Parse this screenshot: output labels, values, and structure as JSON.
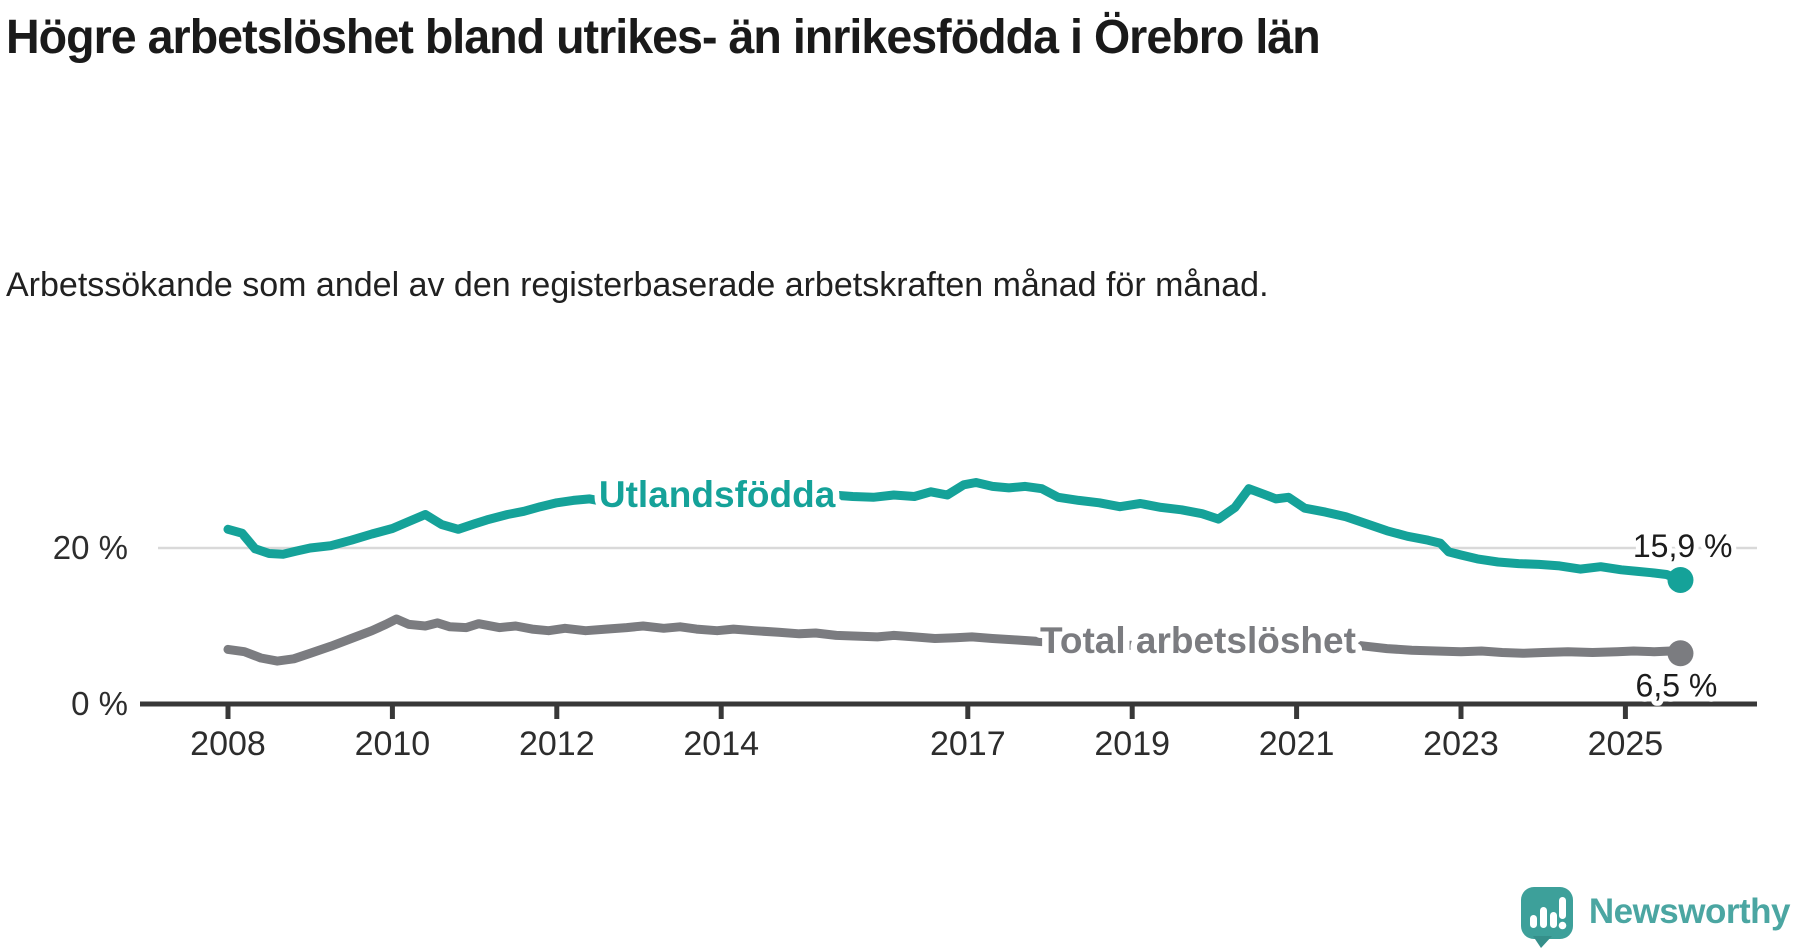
{
  "header": {
    "title": "Högre arbetslöshet bland utrikes- än inrikesfödda i Örebro län",
    "subtitle": "Arbetssökande som andel av den registerbaserade arbetskraften månad för månad."
  },
  "logo": {
    "text": "Newsworthy",
    "icon": "newsworthy-speech-bubble-bar-chart-icon",
    "color": "#4ba6a2",
    "icon_color": "#3da09a"
  },
  "colors": {
    "accent_teal": "#15a299",
    "neutral_gray": "#7b7c80",
    "axis": "#383838",
    "gridline": "#d9d9d9",
    "text_dark": "#1c1c1c"
  },
  "chart_data": {
    "type": "line",
    "title": "Högre arbetslöshet bland utrikes- än inrikesfödda i Örebro län",
    "subtitle": "Arbetssökande som andel av den registerbaserade arbetskraften månad för månad.",
    "xlabel": "",
    "ylabel": "%",
    "x_range_years": [
      2007.85,
      2026.6
    ],
    "ylim": [
      0,
      30
    ],
    "grid": "y-at-20-only",
    "legend_position": "inline-labels-on-lines",
    "x_ticks": [
      {
        "year": 2008,
        "label": "2008"
      },
      {
        "year": 2010,
        "label": "2010"
      },
      {
        "year": 2012,
        "label": "2012"
      },
      {
        "year": 2014,
        "label": "2014"
      },
      {
        "year": 2017,
        "label": "2017"
      },
      {
        "year": 2019,
        "label": "2019"
      },
      {
        "year": 2021,
        "label": "2021"
      },
      {
        "year": 2023,
        "label": "2023"
      },
      {
        "year": 2025,
        "label": "2025"
      }
    ],
    "y_ticks": [
      {
        "value": 0,
        "label": "0 %",
        "gridline": false
      },
      {
        "value": 20,
        "label": "20 %",
        "gridline": true
      }
    ],
    "series": [
      {
        "name": "Utlandsfödda",
        "color": "#15a299",
        "end_value": 15.9,
        "end_label": "15,9 %",
        "end_label_pos": "above",
        "label_anchor": {
          "year": 2013.95,
          "pct": 26.9
        },
        "points": [
          [
            2008.0,
            22.4
          ],
          [
            2008.17,
            21.9
          ],
          [
            2008.33,
            19.9
          ],
          [
            2008.5,
            19.3
          ],
          [
            2008.67,
            19.2
          ],
          [
            2008.83,
            19.6
          ],
          [
            2009.0,
            20.0
          ],
          [
            2009.25,
            20.3
          ],
          [
            2009.5,
            21.0
          ],
          [
            2009.75,
            21.8
          ],
          [
            2010.0,
            22.5
          ],
          [
            2010.2,
            23.4
          ],
          [
            2010.4,
            24.3
          ],
          [
            2010.6,
            23.0
          ],
          [
            2010.8,
            22.4
          ],
          [
            2011.0,
            23.1
          ],
          [
            2011.15,
            23.6
          ],
          [
            2011.4,
            24.3
          ],
          [
            2011.6,
            24.7
          ],
          [
            2011.8,
            25.3
          ],
          [
            2012.0,
            25.8
          ],
          [
            2012.2,
            26.1
          ],
          [
            2012.4,
            26.3
          ],
          [
            2012.6,
            25.9
          ],
          [
            2012.75,
            26.3
          ],
          [
            2012.9,
            26.7
          ],
          [
            2013.1,
            26.3
          ],
          [
            2013.3,
            26.2
          ],
          [
            2013.5,
            26.5
          ],
          [
            2013.7,
            26.7
          ],
          [
            2013.9,
            26.8
          ],
          [
            2014.1,
            26.6
          ],
          [
            2014.35,
            26.8
          ],
          [
            2014.6,
            26.9
          ],
          [
            2014.85,
            27.0
          ],
          [
            2015.1,
            26.9
          ],
          [
            2015.35,
            26.8
          ],
          [
            2015.6,
            26.6
          ],
          [
            2015.85,
            26.5
          ],
          [
            2016.1,
            26.8
          ],
          [
            2016.35,
            26.6
          ],
          [
            2016.55,
            27.2
          ],
          [
            2016.75,
            26.8
          ],
          [
            2016.95,
            28.1
          ],
          [
            2017.1,
            28.4
          ],
          [
            2017.3,
            27.9
          ],
          [
            2017.5,
            27.7
          ],
          [
            2017.7,
            27.9
          ],
          [
            2017.9,
            27.6
          ],
          [
            2018.1,
            26.5
          ],
          [
            2018.35,
            26.1
          ],
          [
            2018.6,
            25.8
          ],
          [
            2018.85,
            25.3
          ],
          [
            2019.1,
            25.7
          ],
          [
            2019.35,
            25.2
          ],
          [
            2019.6,
            24.9
          ],
          [
            2019.85,
            24.4
          ],
          [
            2020.05,
            23.7
          ],
          [
            2020.25,
            25.2
          ],
          [
            2020.42,
            27.6
          ],
          [
            2020.6,
            26.9
          ],
          [
            2020.75,
            26.3
          ],
          [
            2020.9,
            26.5
          ],
          [
            2021.1,
            25.1
          ],
          [
            2021.35,
            24.6
          ],
          [
            2021.6,
            24.0
          ],
          [
            2021.85,
            23.1
          ],
          [
            2022.1,
            22.2
          ],
          [
            2022.35,
            21.5
          ],
          [
            2022.6,
            21.0
          ],
          [
            2022.75,
            20.6
          ],
          [
            2022.85,
            19.5
          ],
          [
            2023.0,
            19.1
          ],
          [
            2023.2,
            18.6
          ],
          [
            2023.45,
            18.2
          ],
          [
            2023.7,
            18.0
          ],
          [
            2023.95,
            17.9
          ],
          [
            2024.2,
            17.7
          ],
          [
            2024.45,
            17.3
          ],
          [
            2024.7,
            17.6
          ],
          [
            2024.95,
            17.2
          ],
          [
            2025.15,
            17.0
          ],
          [
            2025.35,
            16.8
          ],
          [
            2025.5,
            16.6
          ],
          [
            2025.67,
            15.9
          ]
        ]
      },
      {
        "name": "Total arbetslöshet",
        "color": "#7b7c80",
        "end_value": 6.5,
        "end_label": "6,5 %",
        "end_label_pos": "below",
        "label_anchor": {
          "year": 2019.8,
          "pct": 8.2
        },
        "points": [
          [
            2008.0,
            7.0
          ],
          [
            2008.2,
            6.7
          ],
          [
            2008.4,
            5.9
          ],
          [
            2008.6,
            5.5
          ],
          [
            2008.8,
            5.8
          ],
          [
            2009.0,
            6.5
          ],
          [
            2009.25,
            7.4
          ],
          [
            2009.5,
            8.4
          ],
          [
            2009.75,
            9.4
          ],
          [
            2009.92,
            10.2
          ],
          [
            2010.05,
            10.9
          ],
          [
            2010.2,
            10.2
          ],
          [
            2010.4,
            10.0
          ],
          [
            2010.55,
            10.4
          ],
          [
            2010.7,
            9.9
          ],
          [
            2010.9,
            9.8
          ],
          [
            2011.05,
            10.3
          ],
          [
            2011.3,
            9.8
          ],
          [
            2011.5,
            10.0
          ],
          [
            2011.7,
            9.6
          ],
          [
            2011.9,
            9.4
          ],
          [
            2012.1,
            9.7
          ],
          [
            2012.35,
            9.4
          ],
          [
            2012.6,
            9.6
          ],
          [
            2012.85,
            9.8
          ],
          [
            2013.05,
            10.0
          ],
          [
            2013.3,
            9.7
          ],
          [
            2013.5,
            9.9
          ],
          [
            2013.7,
            9.6
          ],
          [
            2013.95,
            9.4
          ],
          [
            2014.15,
            9.6
          ],
          [
            2014.4,
            9.4
          ],
          [
            2014.7,
            9.2
          ],
          [
            2014.95,
            9.0
          ],
          [
            2015.15,
            9.1
          ],
          [
            2015.4,
            8.8
          ],
          [
            2015.65,
            8.7
          ],
          [
            2015.9,
            8.6
          ],
          [
            2016.1,
            8.8
          ],
          [
            2016.35,
            8.6
          ],
          [
            2016.6,
            8.4
          ],
          [
            2016.85,
            8.5
          ],
          [
            2017.05,
            8.6
          ],
          [
            2017.3,
            8.4
          ],
          [
            2017.6,
            8.2
          ],
          [
            2017.9,
            8.0
          ],
          [
            2018.1,
            8.1
          ],
          [
            2018.4,
            7.9
          ],
          [
            2018.7,
            7.7
          ],
          [
            2018.95,
            7.5
          ],
          [
            2019.15,
            7.7
          ],
          [
            2019.4,
            7.5
          ],
          [
            2019.7,
            7.3
          ],
          [
            2019.95,
            7.1
          ],
          [
            2020.15,
            7.4
          ],
          [
            2020.35,
            8.6
          ],
          [
            2020.55,
            9.2
          ],
          [
            2020.8,
            9.0
          ],
          [
            2021.05,
            8.6
          ],
          [
            2021.3,
            8.1
          ],
          [
            2021.6,
            7.7
          ],
          [
            2021.85,
            7.4
          ],
          [
            2022.1,
            7.1
          ],
          [
            2022.4,
            6.9
          ],
          [
            2022.7,
            6.8
          ],
          [
            2023.0,
            6.7
          ],
          [
            2023.25,
            6.8
          ],
          [
            2023.5,
            6.6
          ],
          [
            2023.75,
            6.5
          ],
          [
            2024.0,
            6.6
          ],
          [
            2024.3,
            6.7
          ],
          [
            2024.6,
            6.6
          ],
          [
            2024.9,
            6.7
          ],
          [
            2025.1,
            6.8
          ],
          [
            2025.35,
            6.7
          ],
          [
            2025.55,
            6.8
          ],
          [
            2025.67,
            6.5
          ]
        ]
      }
    ]
  }
}
